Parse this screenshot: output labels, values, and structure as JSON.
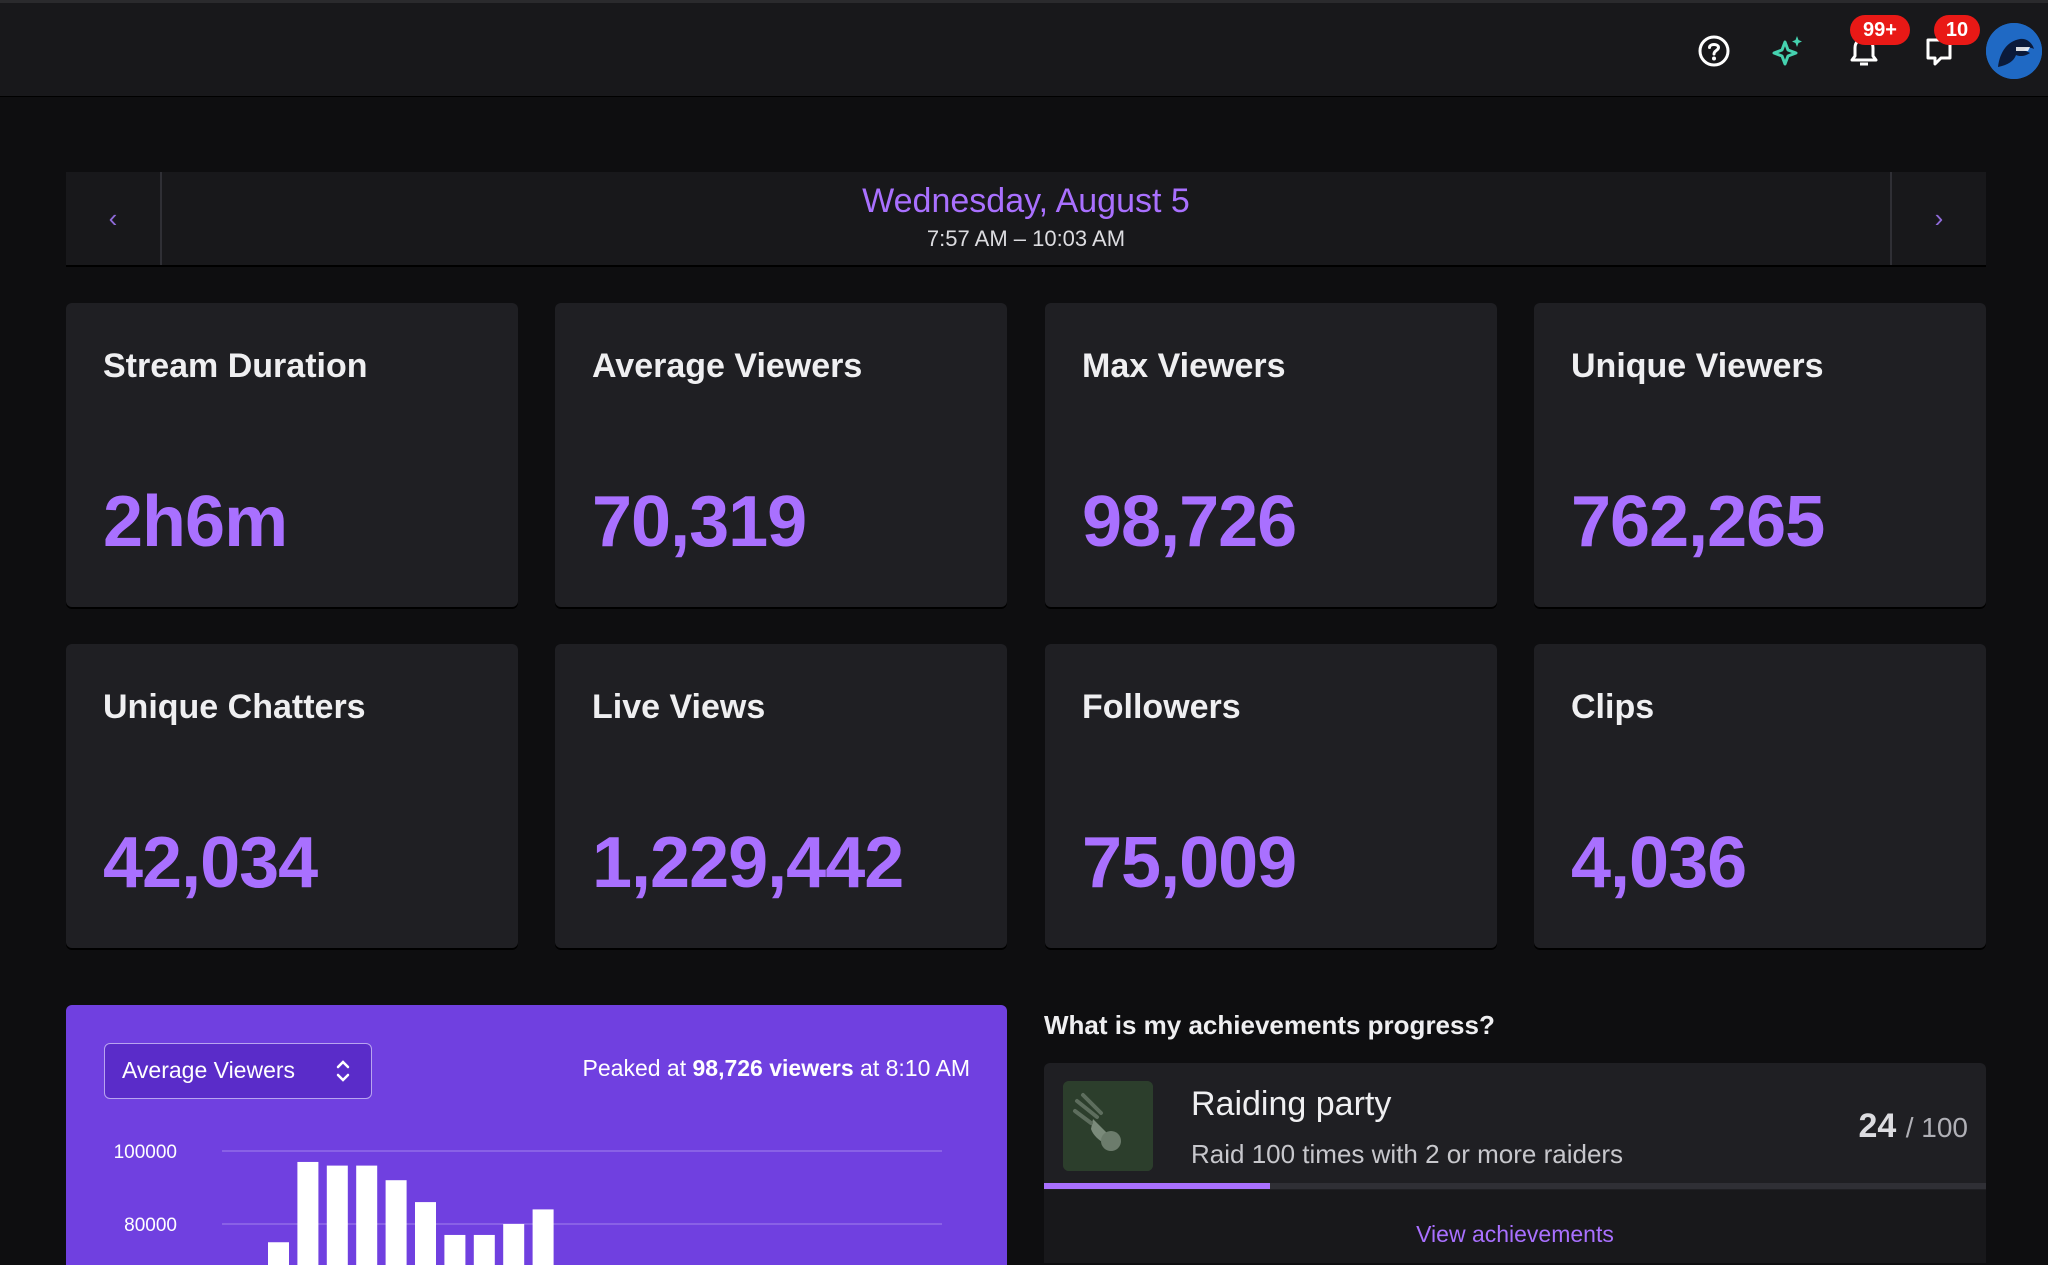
{
  "topbar": {
    "notifications_badge": "99+",
    "whispers_badge": "10",
    "accent": "#a970ff",
    "badge_color": "#e91916"
  },
  "header": {
    "date": "Wednesday, August 5",
    "time_range": "7:57 AM – 10:03 AM"
  },
  "stats": [
    {
      "label": "Stream Duration",
      "value": "2h6m"
    },
    {
      "label": "Average Viewers",
      "value": "70,319"
    },
    {
      "label": "Max Viewers",
      "value": "98,726"
    },
    {
      "label": "Unique Viewers",
      "value": "762,265"
    },
    {
      "label": "Unique Chatters",
      "value": "42,034"
    },
    {
      "label": "Live Views",
      "value": "1,229,442"
    },
    {
      "label": "Followers",
      "value": "75,009"
    },
    {
      "label": "Clips",
      "value": "4,036"
    }
  ],
  "chart_panel": {
    "selected_metric": "Average Viewers",
    "peak_prefix": "Peaked at",
    "peak_value": "98,726 viewers",
    "peak_suffix": "at 8:10 AM",
    "background": "#7040e0"
  },
  "chart_data": {
    "type": "bar",
    "ylim": [
      60000,
      105000
    ],
    "y_ticks": [
      {
        "value": 100000,
        "label": "100000"
      },
      {
        "value": 80000,
        "label": "80000"
      }
    ],
    "values": [
      75000,
      97000,
      96000,
      96000,
      92000,
      86000,
      77000,
      77000,
      80000,
      84000
    ],
    "grid": true
  },
  "achievements": {
    "heading": "What is my achievements progress?",
    "title": "Raiding party",
    "description": "Raid 100 times with 2 or more raiders",
    "current": "24",
    "total": "/ 100",
    "progress": 0.24,
    "link": "View achievements"
  }
}
